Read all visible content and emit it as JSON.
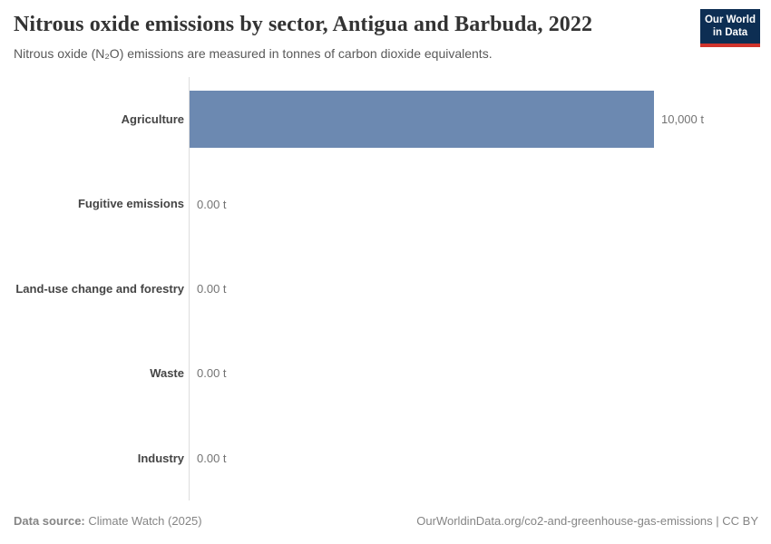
{
  "header": {
    "title": "Nitrous oxide emissions by sector, Antigua and Barbuda, 2022",
    "subtitle": "Nitrous oxide (N₂O) emissions are measured in tonnes of carbon dioxide equivalents.",
    "logo": {
      "line1": "Our World",
      "line2": "in Data"
    }
  },
  "chart_data": {
    "type": "bar",
    "orientation": "horizontal",
    "title": "Nitrous oxide emissions by sector, Antigua and Barbuda, 2022",
    "subtitle": "Nitrous oxide (N₂O) emissions are measured in tonnes of carbon dioxide equivalents.",
    "categories": [
      "Agriculture",
      "Fugitive emissions",
      "Land-use change and forestry",
      "Waste",
      "Industry"
    ],
    "values": [
      10000,
      0,
      0,
      0,
      0
    ],
    "value_labels": [
      "10,000 t",
      "0.00 t",
      "0.00 t",
      "0.00 t",
      "0.00 t"
    ],
    "unit": "t",
    "xlabel": "",
    "ylabel": "",
    "xlim": [
      0,
      10000
    ],
    "grid": false,
    "legend": "none",
    "bar_color": "#6c89b1",
    "axis_color": "#dddddd"
  },
  "footer": {
    "datasource_label": "Data source:",
    "datasource_value": "Climate Watch (2025)",
    "attribution": "OurWorldinData.org/co2-and-greenhouse-gas-emissions | CC BY"
  },
  "colors": {
    "title": "#333333",
    "subtitle": "#595959",
    "category_label": "#454545",
    "value_label": "#737373",
    "footer_text": "#858585",
    "logo_background": "#0d2e53",
    "logo_accent": "#d0342c",
    "bar": "#6c89b1"
  }
}
